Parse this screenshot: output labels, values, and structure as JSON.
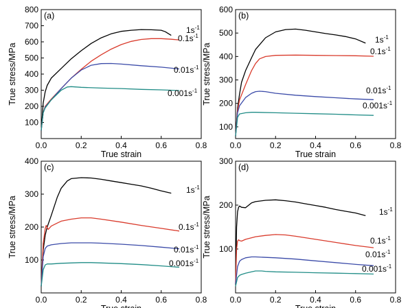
{
  "chart_data": [
    {
      "type": "line",
      "panel_label": "(a)",
      "xlabel": "True strain",
      "ylabel": "True stress/MPa",
      "xlim": [
        0.0,
        0.8
      ],
      "ylim": [
        0,
        800
      ],
      "xticks": [
        "0.0",
        "0.2",
        "0.4",
        "0.6",
        "0.8"
      ],
      "yticks": [
        "100",
        "200",
        "300",
        "400",
        "500",
        "600",
        "700",
        "800"
      ],
      "series": [
        {
          "base": "1s",
          "sup": "-1",
          "color": "#000000",
          "x": [
            0.0,
            0.01,
            0.02,
            0.03,
            0.05,
            0.1,
            0.15,
            0.2,
            0.25,
            0.3,
            0.35,
            0.4,
            0.45,
            0.5,
            0.55,
            0.6,
            0.62,
            0.65
          ],
          "y": [
            50,
            220,
            290,
            330,
            375,
            435,
            495,
            545,
            590,
            625,
            650,
            665,
            672,
            676,
            675,
            672,
            663,
            640
          ]
        },
        {
          "base": "0.1s",
          "sup": "-1",
          "color": "#d93a2b",
          "x": [
            0.0,
            0.01,
            0.02,
            0.05,
            0.1,
            0.15,
            0.2,
            0.25,
            0.3,
            0.35,
            0.4,
            0.45,
            0.5,
            0.55,
            0.6,
            0.65,
            0.69
          ],
          "y": [
            50,
            160,
            200,
            245,
            310,
            375,
            430,
            480,
            520,
            555,
            583,
            603,
            615,
            620,
            620,
            616,
            612
          ]
        },
        {
          "base": "0.01s",
          "sup": "-1",
          "color": "#3a4aa8",
          "x": [
            0.0,
            0.01,
            0.02,
            0.05,
            0.1,
            0.15,
            0.2,
            0.25,
            0.3,
            0.35,
            0.4,
            0.5,
            0.6,
            0.69
          ],
          "y": [
            50,
            160,
            195,
            240,
            310,
            375,
            425,
            455,
            465,
            466,
            462,
            452,
            443,
            432
          ]
        },
        {
          "base": "0.001s",
          "sup": "-1",
          "color": "#1f8c86",
          "x": [
            0.0,
            0.01,
            0.02,
            0.05,
            0.1,
            0.13,
            0.15,
            0.2,
            0.3,
            0.4,
            0.5,
            0.6,
            0.69
          ],
          "y": [
            50,
            160,
            190,
            240,
            300,
            320,
            322,
            318,
            313,
            310,
            305,
            302,
            298
          ]
        }
      ]
    },
    {
      "type": "line",
      "panel_label": "(b)",
      "xlabel": "True strain",
      "ylabel": "True stress/MPa",
      "xlim": [
        0.0,
        0.8
      ],
      "ylim": [
        50,
        600
      ],
      "xticks": [
        "0.0",
        "0.2",
        "0.4",
        "0.6",
        "0.8"
      ],
      "yticks": [
        "100",
        "200",
        "300",
        "400",
        "500",
        "600"
      ],
      "series": [
        {
          "base": "1s",
          "sup": "-1",
          "color": "#000000",
          "x": [
            0.0,
            0.01,
            0.02,
            0.03,
            0.05,
            0.08,
            0.1,
            0.15,
            0.2,
            0.25,
            0.3,
            0.35,
            0.4,
            0.45,
            0.5,
            0.55,
            0.6,
            0.65
          ],
          "y": [
            60,
            180,
            240,
            290,
            340,
            395,
            430,
            480,
            505,
            515,
            517,
            512,
            505,
            498,
            492,
            485,
            475,
            457
          ]
        },
        {
          "base": "0.1s",
          "sup": "-1",
          "color": "#d93a2b",
          "x": [
            0.0,
            0.01,
            0.02,
            0.05,
            0.08,
            0.1,
            0.12,
            0.15,
            0.2,
            0.3,
            0.4,
            0.5,
            0.6,
            0.69
          ],
          "y": [
            60,
            170,
            215,
            280,
            340,
            370,
            390,
            400,
            405,
            406,
            405,
            404,
            403,
            401
          ]
        },
        {
          "base": "0.01s",
          "sup": "-1",
          "color": "#3a4aa8",
          "x": [
            0.0,
            0.01,
            0.02,
            0.05,
            0.08,
            0.1,
            0.12,
            0.15,
            0.2,
            0.3,
            0.4,
            0.5,
            0.6,
            0.69
          ],
          "y": [
            60,
            160,
            190,
            225,
            243,
            250,
            252,
            250,
            243,
            235,
            229,
            224,
            219,
            216
          ]
        },
        {
          "base": "0.001s",
          "sup": "-1",
          "color": "#1f8c86",
          "x": [
            0.0,
            0.01,
            0.02,
            0.05,
            0.08,
            0.1,
            0.2,
            0.3,
            0.4,
            0.5,
            0.6,
            0.69
          ],
          "y": [
            60,
            140,
            155,
            160,
            162,
            162,
            160,
            158,
            156,
            154,
            151,
            149
          ]
        }
      ]
    },
    {
      "type": "line",
      "panel_label": "(c)",
      "xlabel": "True strain",
      "ylabel": "True stress/MPa",
      "xlim": [
        0.0,
        0.8
      ],
      "ylim": [
        0,
        400
      ],
      "xticks": [
        "0.0",
        "0.2",
        "0.4",
        "0.6",
        "0.8"
      ],
      "yticks": [
        "100",
        "200",
        "300",
        "400"
      ],
      "series": [
        {
          "base": "1s",
          "sup": "-1",
          "color": "#000000",
          "x": [
            0.0,
            0.01,
            0.02,
            0.03,
            0.05,
            0.08,
            0.1,
            0.13,
            0.15,
            0.2,
            0.25,
            0.3,
            0.35,
            0.4,
            0.45,
            0.5,
            0.55,
            0.6,
            0.65
          ],
          "y": [
            20,
            130,
            175,
            200,
            235,
            290,
            318,
            340,
            347,
            350,
            349,
            345,
            340,
            335,
            330,
            325,
            318,
            310,
            303
          ]
        },
        {
          "base": "0.1s",
          "sup": "-1",
          "color": "#d93a2b",
          "x": [
            0.0,
            0.01,
            0.02,
            0.025,
            0.03,
            0.035,
            0.05,
            0.08,
            0.1,
            0.15,
            0.2,
            0.25,
            0.3,
            0.4,
            0.5,
            0.6,
            0.69
          ],
          "y": [
            20,
            150,
            195,
            205,
            198,
            193,
            203,
            212,
            218,
            224,
            228,
            228,
            224,
            215,
            205,
            196,
            188
          ]
        },
        {
          "base": "0.01s",
          "sup": "-1",
          "color": "#3a4aa8",
          "x": [
            0.0,
            0.01,
            0.02,
            0.03,
            0.05,
            0.1,
            0.15,
            0.2,
            0.25,
            0.3,
            0.4,
            0.5,
            0.6,
            0.69
          ],
          "y": [
            20,
            110,
            135,
            142,
            146,
            150,
            152,
            152,
            152,
            151,
            148,
            144,
            139,
            134
          ]
        },
        {
          "base": "0.001s",
          "sup": "-1",
          "color": "#1f8c86",
          "x": [
            0.0,
            0.01,
            0.02,
            0.03,
            0.05,
            0.1,
            0.15,
            0.2,
            0.25,
            0.3,
            0.4,
            0.5,
            0.6,
            0.69
          ],
          "y": [
            20,
            70,
            85,
            88,
            88,
            90,
            91,
            92,
            92,
            91,
            89,
            86,
            82,
            78
          ]
        }
      ]
    },
    {
      "type": "line",
      "panel_label": "(d)",
      "xlabel": "True strain",
      "ylabel": "True stress/MPa",
      "xlim": [
        0.0,
        0.8
      ],
      "ylim": [
        0,
        300
      ],
      "xticks": [
        "0.0",
        "0.2",
        "0.4",
        "0.6",
        "0.8"
      ],
      "yticks": [
        "100",
        "200",
        "300"
      ],
      "series": [
        {
          "base": "1s",
          "sup": "-1",
          "color": "#000000",
          "x": [
            0.0,
            0.005,
            0.01,
            0.015,
            0.02,
            0.03,
            0.05,
            0.08,
            0.1,
            0.15,
            0.2,
            0.25,
            0.3,
            0.35,
            0.4,
            0.45,
            0.5,
            0.55,
            0.6,
            0.65
          ],
          "y": [
            20,
            150,
            185,
            195,
            198,
            195,
            194,
            205,
            208,
            211,
            212,
            210,
            207,
            203,
            199,
            195,
            190,
            186,
            182,
            176
          ]
        },
        {
          "base": "0.1s",
          "sup": "-1",
          "color": "#d93a2b",
          "x": [
            0.0,
            0.005,
            0.01,
            0.015,
            0.02,
            0.03,
            0.05,
            0.1,
            0.15,
            0.2,
            0.25,
            0.3,
            0.4,
            0.5,
            0.6,
            0.69
          ],
          "y": [
            20,
            100,
            118,
            121,
            119,
            118,
            122,
            128,
            131,
            133,
            132,
            129,
            122,
            115,
            108,
            103
          ]
        },
        {
          "base": "0.01s",
          "sup": "-1",
          "color": "#3a4aa8",
          "x": [
            0.0,
            0.01,
            0.02,
            0.03,
            0.05,
            0.08,
            0.1,
            0.15,
            0.2,
            0.3,
            0.4,
            0.5,
            0.6,
            0.69
          ],
          "y": [
            20,
            60,
            72,
            76,
            80,
            82,
            82,
            81,
            80,
            77,
            73,
            69,
            65,
            62
          ]
        },
        {
          "base": "0.001s",
          "sup": "-1",
          "color": "#1f8c86",
          "x": [
            0.0,
            0.01,
            0.02,
            0.03,
            0.05,
            0.08,
            0.1,
            0.13,
            0.15,
            0.2,
            0.3,
            0.4,
            0.5,
            0.6,
            0.69
          ],
          "y": [
            15,
            35,
            40,
            42,
            45,
            48,
            50,
            50,
            49,
            48,
            47,
            46,
            45,
            44,
            43
          ]
        }
      ]
    }
  ]
}
